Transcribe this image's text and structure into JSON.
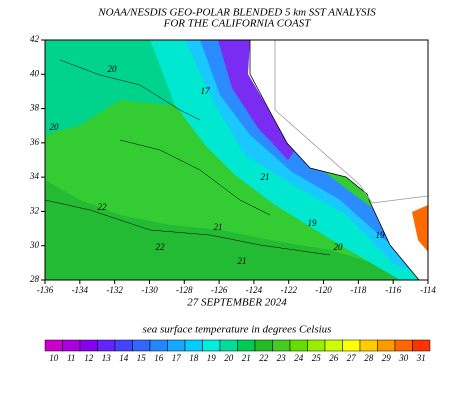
{
  "header": {
    "title": "NOAA/NESDIS GEO-POLAR BLENDED 5 km SST ANALYSIS",
    "subtitle": "FOR THE CALIFORNIA COAST"
  },
  "map": {
    "x_ticks": [
      "-136",
      "-134",
      "-132",
      "-130",
      "-128",
      "-126",
      "-124",
      "-122",
      "-120",
      "-118",
      "-116",
      "-114"
    ],
    "y_ticks": [
      "42",
      "40",
      "38",
      "36",
      "34",
      "32",
      "30",
      "28"
    ],
    "contour_labels": [
      "20",
      "17",
      "20",
      "21",
      "22",
      "22",
      "21",
      "21",
      "19",
      "19",
      "20"
    ],
    "date": "27 SEPTEMBER 2024"
  },
  "legend": {
    "label": "sea surface temperature in degrees Celsius",
    "values": [
      "10",
      "11",
      "12",
      "13",
      "14",
      "15",
      "16",
      "17",
      "18",
      "19",
      "20",
      "21",
      "22",
      "23",
      "24",
      "25",
      "26",
      "27",
      "28",
      "29",
      "30",
      "31"
    ],
    "colors": [
      "#cc00cc",
      "#aa00dd",
      "#8800ee",
      "#6622ff",
      "#4444ff",
      "#3366ff",
      "#2288ff",
      "#11aaff",
      "#00ccff",
      "#00eedd",
      "#00dd99",
      "#00cc55",
      "#22bb22",
      "#44cc22",
      "#66dd00",
      "#99ee00",
      "#ccff00",
      "#ffff00",
      "#ffcc00",
      "#ff9900",
      "#ff6600",
      "#ff3300"
    ]
  }
}
